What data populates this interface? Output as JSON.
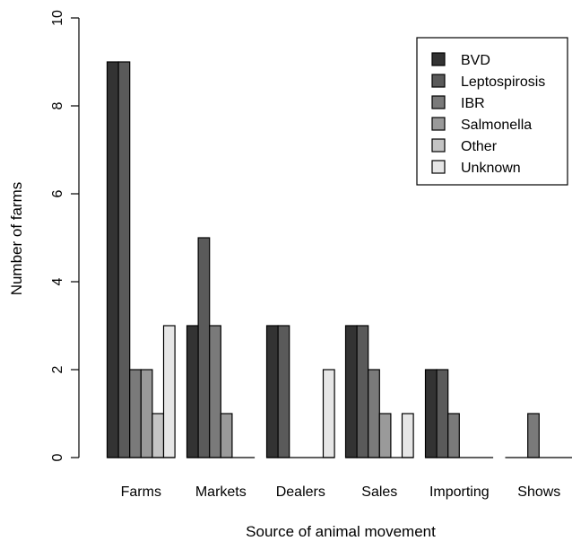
{
  "chart_data": {
    "type": "bar",
    "xlabel": "Source of animal movement",
    "ylabel": "Number of farms",
    "ylim": [
      0,
      10
    ],
    "yticks": [
      0,
      2,
      4,
      6,
      8,
      10
    ],
    "legend_position": "top-right",
    "categories": [
      "Farms",
      "Markets",
      "Dealers",
      "Sales",
      "Importing",
      "Shows"
    ],
    "series": [
      {
        "name": "BVD",
        "color": "#333333",
        "values": [
          9,
          3,
          3,
          3,
          2,
          0
        ]
      },
      {
        "name": "Leptospirosis",
        "color": "#5a5a5a",
        "values": [
          9,
          5,
          3,
          3,
          2,
          0
        ]
      },
      {
        "name": "IBR",
        "color": "#7a7a7a",
        "values": [
          2,
          3,
          0,
          2,
          1,
          1
        ]
      },
      {
        "name": "Salmonella",
        "color": "#9a9a9a",
        "values": [
          2,
          1,
          0,
          1,
          0,
          0
        ]
      },
      {
        "name": "Other",
        "color": "#c4c4c4",
        "values": [
          1,
          0,
          0,
          0,
          0,
          0
        ]
      },
      {
        "name": "Unknown",
        "color": "#e6e6e6",
        "values": [
          3,
          0,
          2,
          1,
          0,
          0
        ]
      }
    ]
  }
}
